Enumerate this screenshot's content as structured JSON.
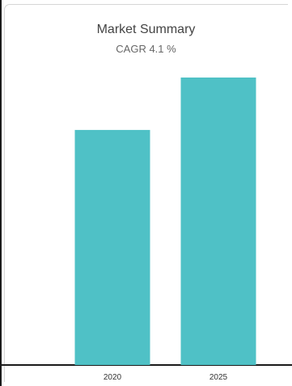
{
  "chart_data": {
    "type": "bar",
    "title": "Market Summary",
    "subtitle": "CAGR 4.1 %",
    "categories": [
      "2020",
      "2025"
    ],
    "values": [
      100,
      122.3
    ],
    "color": "#4fc1c6",
    "ylim": [
      0,
      122.3
    ],
    "grid": false,
    "legend": "none"
  }
}
